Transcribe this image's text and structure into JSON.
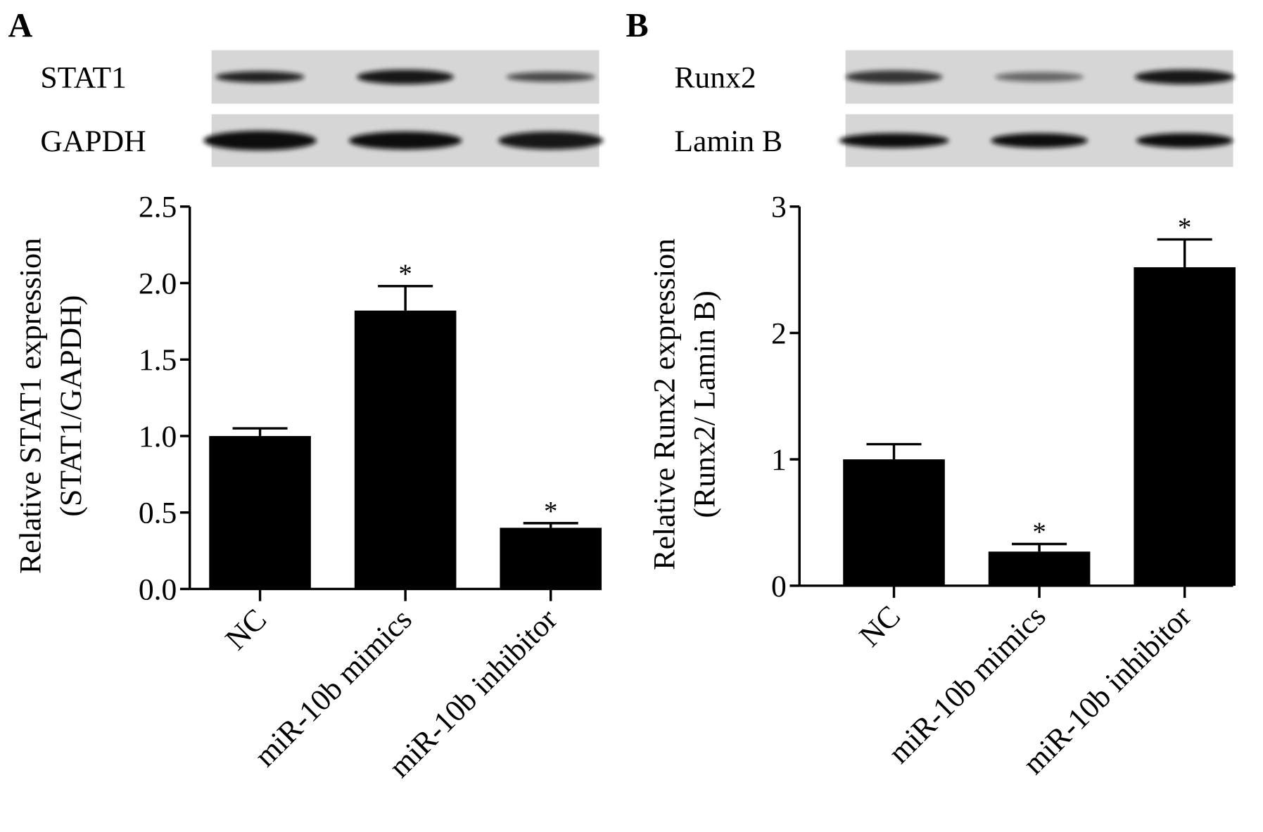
{
  "chart_data": [
    {
      "type": "bar",
      "panel": "A",
      "blots": [
        {
          "label": "STAT1"
        },
        {
          "label": "GAPDH"
        }
      ],
      "ylabel": [
        "Relative STAT1 expression",
        "(STAT1/GAPDH)"
      ],
      "categories": [
        "NC",
        "miR-10b mimics",
        "miR-10b inhibitor"
      ],
      "values": [
        1.0,
        1.82,
        0.4
      ],
      "errors": [
        0.05,
        0.16,
        0.03
      ],
      "significance": [
        null,
        "*",
        "*"
      ],
      "color": "#000000",
      "ylim": [
        0,
        2.5
      ],
      "yticks": [
        {
          "value": 0,
          "label": "0.0"
        },
        0.5,
        {
          "value": 1,
          "label": "1.0"
        },
        1.5,
        {
          "value": 2,
          "label": "2.0"
        },
        2.5
      ]
    },
    {
      "type": "bar",
      "panel": "B",
      "blots": [
        {
          "label": "Runx2"
        },
        {
          "label": "Lamin B"
        }
      ],
      "ylabel": [
        "Relative Runx2 expression",
        "(Runx2/ Lamin B)"
      ],
      "categories": [
        "NC",
        "miR-10b mimics",
        "miR-10b inhibitor"
      ],
      "values": [
        1.0,
        0.27,
        2.52
      ],
      "errors": [
        0.12,
        0.06,
        0.22
      ],
      "significance": [
        null,
        "*",
        "*"
      ],
      "color": "#000000",
      "ylim": [
        0,
        3
      ],
      "yticks": [
        0,
        1,
        2,
        3
      ]
    }
  ]
}
